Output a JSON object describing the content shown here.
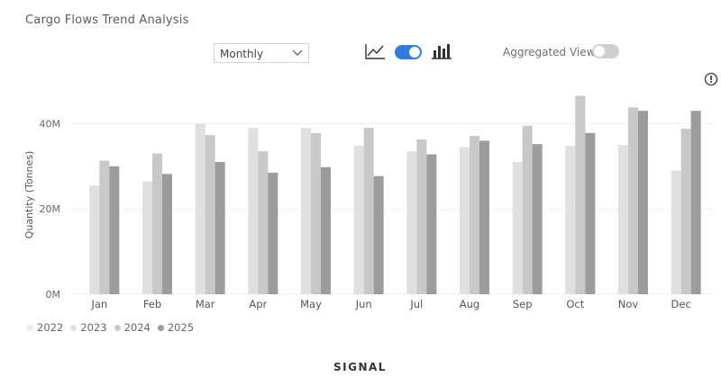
{
  "header": {
    "title": "Cargo Flows Trend Analysis"
  },
  "controls": {
    "period_select": {
      "value": "Monthly"
    },
    "view_toggle": {
      "on": true
    },
    "aggregated_label": "Aggregated View",
    "aggregated_toggle": {
      "on": false
    }
  },
  "colors": {
    "accent": "#2f7de1",
    "toggle_off": "#cfcfcf",
    "s2022": "#ececec",
    "s2023": "#e0e0e0",
    "s2024": "#c8c8c8",
    "s2025": "#9c9c9c"
  },
  "footer": {
    "logo_text": "SIGNAL"
  },
  "chart_data": {
    "type": "bar",
    "categories": [
      "Jan",
      "Feb",
      "Mar",
      "Apr",
      "May",
      "Jun",
      "Jul",
      "Aug",
      "Sep",
      "Oct",
      "Nov",
      "Dec"
    ],
    "series": [
      {
        "name": "2022",
        "values": [
          null,
          null,
          null,
          null,
          null,
          null,
          null,
          null,
          null,
          null,
          null,
          null
        ]
      },
      {
        "name": "2023",
        "values": [
          25.5,
          26.5,
          40.0,
          39.0,
          39.0,
          34.8,
          33.5,
          34.5,
          31.0,
          34.8,
          35.0,
          29.0
        ]
      },
      {
        "name": "2024",
        "values": [
          31.3,
          33.0,
          37.3,
          33.5,
          37.8,
          39.0,
          36.3,
          37.1,
          39.5,
          46.5,
          43.8,
          38.8
        ]
      },
      {
        "name": "2025",
        "values": [
          30.0,
          28.2,
          31.0,
          28.5,
          29.8,
          27.7,
          32.8,
          36.0,
          35.2,
          37.8,
          43.0,
          43.0
        ]
      }
    ],
    "ylabel": "Quantity (Tonnes)",
    "y_ticks": [
      0,
      20,
      40
    ],
    "y_tick_labels": [
      "0M",
      "20M",
      "40M"
    ],
    "ylim": [
      0,
      50
    ],
    "grid": true,
    "legend_position": "bottom-left"
  }
}
